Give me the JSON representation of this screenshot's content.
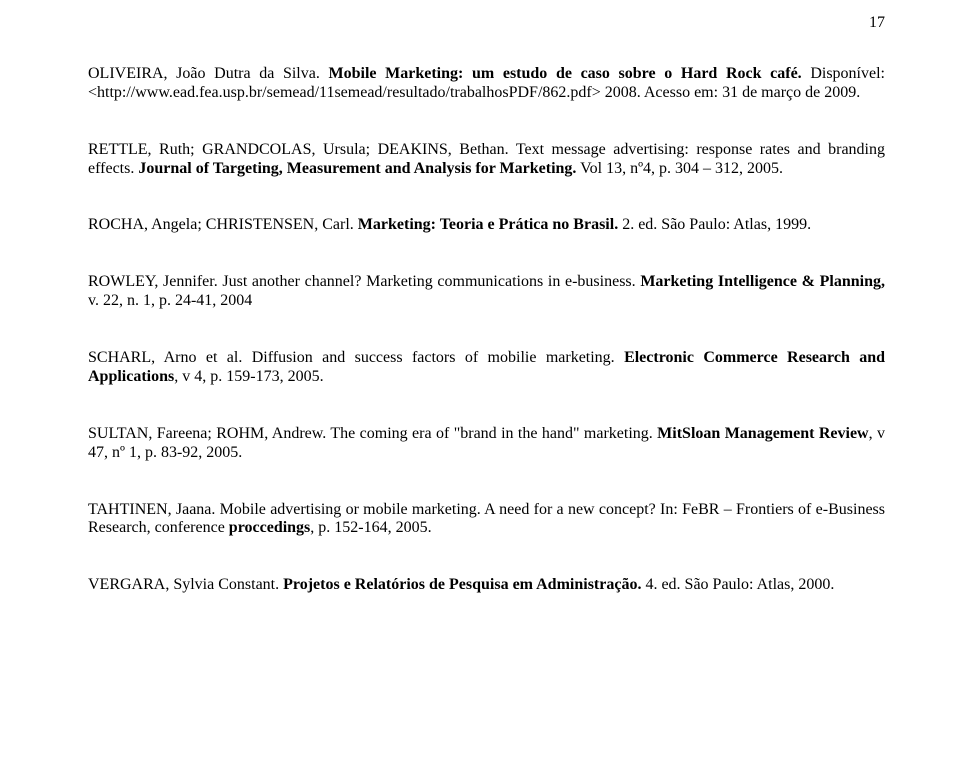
{
  "page_number": "17",
  "typography": {
    "font_family": "Times New Roman",
    "base_font_size_pt": 12,
    "line_height": 1.18,
    "text_color": "#000000",
    "background_color": "#ffffff"
  },
  "refs": {
    "r1": {
      "a": "OLIVEIRA, João Dutra da Silva. ",
      "b": "Mobile Marketing: um estudo de caso sobre o Hard Rock café.",
      "c": " Disponível: <http://www.ead.fea.usp.br/semead/11semead/resultado/trabalhosPDF/862.pdf> 2008. Acesso em: 31 de março de 2009."
    },
    "r2": {
      "a": "RETTLE, Ruth; GRANDCOLAS, Ursula; DEAKINS, Bethan. Text message advertising: response rates and branding effects. ",
      "b": "Journal of Targeting, Measurement and Analysis for Marketing.",
      "c": " Vol 13, nº4, p. 304 – 312, 2005."
    },
    "r3": {
      "a": "ROCHA, Angela; CHRISTENSEN, Carl. ",
      "b": "Marketing: Teoria e Prática no Brasil.",
      "c": " 2. ed. São Paulo: Atlas, 1999."
    },
    "r4": {
      "a": "ROWLEY, Jennifer. Just another channel? Marketing communications in e-business. ",
      "b": "Marketing Intelligence & Planning, ",
      "c": "v. 22, n. 1, p. 24-41, 2004"
    },
    "r5": {
      "a": "SCHARL, Arno et al. Diffusion and success factors of mobilie marketing. ",
      "b": "Electronic Commerce Research and Applications",
      "c": ", v 4, p. 159-173, 2005."
    },
    "r6": {
      "a": "SULTAN, Fareena; ROHM, Andrew. The coming era of \"brand in the hand\" marketing. ",
      "b": "MitSloan Management Review",
      "c": ", v 47, nº 1, p. 83-92, 2005."
    },
    "r7": {
      "a": "TAHTINEN, Jaana. Mobile advertising or mobile marketing. A need for a new concept? In: FeBR – Frontiers of e-Business Research, conference ",
      "b": "proccedings",
      "c": ", p. 152-164, 2005."
    },
    "r8": {
      "a": "VERGARA, Sylvia Constant. ",
      "b": "Projetos e Relatórios de Pesquisa em Administração.",
      "c": " 4. ed. São Paulo: Atlas, 2000."
    }
  }
}
